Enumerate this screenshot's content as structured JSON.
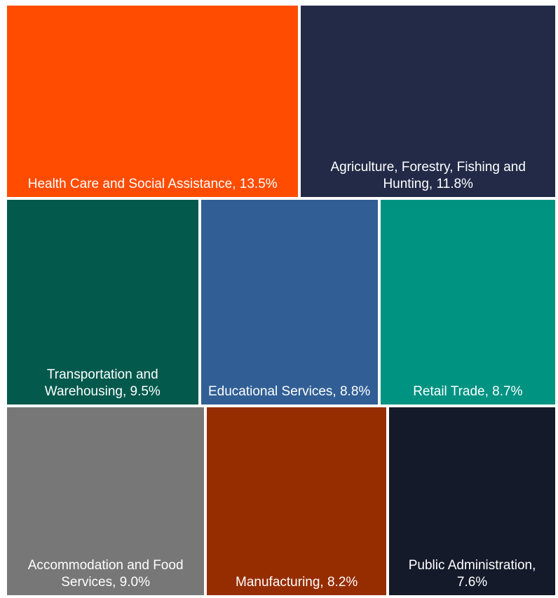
{
  "chart_data": {
    "type": "treemap",
    "values": [
      13.5,
      11.8,
      9.5,
      8.8,
      8.7,
      9.0,
      8.2,
      7.6
    ],
    "value_labels": [
      "Health Care and Social Assistance, 13.5%",
      "Agriculture, Forestry, Fishing and Hunting, 11.8%",
      "Transportation and Warehousing, 9.5%",
      "Educational Services, 8.8%",
      "Retail Trade, 8.7%",
      "Accommodation and Food Services, 9.0%",
      "Manufacturing, 8.2%",
      "Public Administration, 7.6%"
    ],
    "colors": [
      "#ff4c00",
      "#222a47",
      "#03594c",
      "#315f95",
      "#009382",
      "#777777",
      "#962d00",
      "#141a2a"
    ]
  }
}
